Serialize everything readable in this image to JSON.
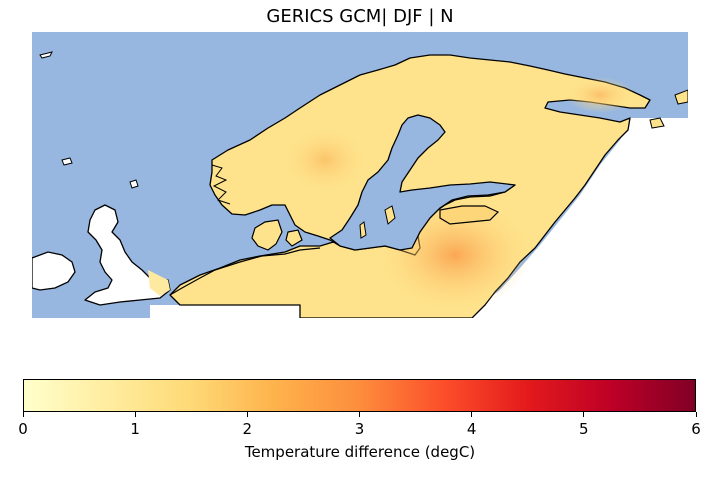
{
  "title": "GERICS GCM| DJF | N",
  "colorbar": {
    "label": "Temperature difference (degC)",
    "ticks": [
      "0",
      "1",
      "2",
      "3",
      "4",
      "5",
      "6"
    ],
    "range": [
      0,
      6
    ],
    "colormap_stops": [
      "#ffffcc",
      "#ffeda0",
      "#fed976",
      "#feb24c",
      "#fd8d3c",
      "#fc4e2a",
      "#e31a1c",
      "#bd0026",
      "#800026"
    ]
  },
  "colors": {
    "ocean": "#97b6e0",
    "coastline": "#000000",
    "no_data_land": "#ffffff",
    "field_low": "#fee38c",
    "field_mid": "#fed67a",
    "field_high": "#fbb05a"
  },
  "map": {
    "region": "Northern Europe / Scandinavia",
    "variable": "Temperature difference (degC)",
    "approx_value_range": [
      1.0,
      2.6
    ]
  }
}
